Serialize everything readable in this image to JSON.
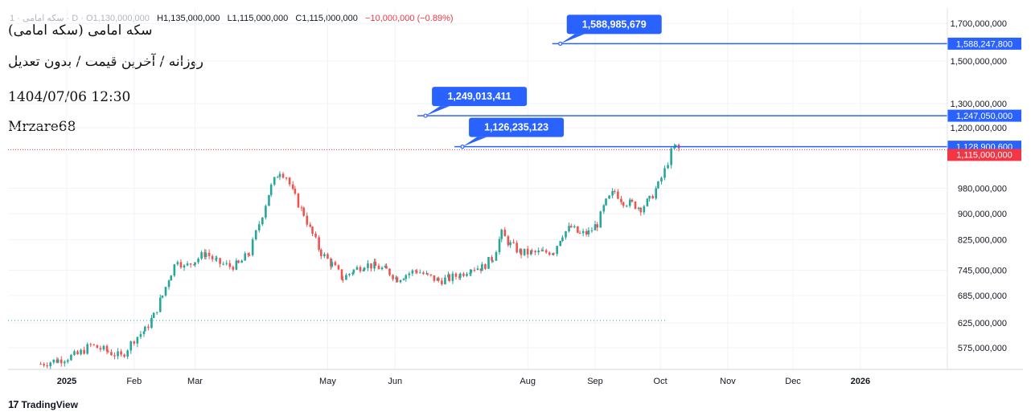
{
  "header": {
    "symbol_line": "1 · سکه امامی · D · O1,130,000,000",
    "high": "H1,135,000,000",
    "low": "L1,115,000,000",
    "close": "C1,115,000,000",
    "change": "−10,000,000 (−0.89%)"
  },
  "notes": {
    "title": "سکه امامی (سکه امامی)",
    "subtitle": "روزانه / آخرین قیمت / بدون تعدیل",
    "datetime": "1404/07/06 12:30",
    "author": "Mrzare68"
  },
  "branding": {
    "name": "TradingView",
    "logo_icon": "tradingview-logo-icon"
  },
  "colors": {
    "up": "#26a69a",
    "down": "#ef5350",
    "level": "#2962ff",
    "last_price": "#f23645",
    "grid": "#f0f3fa",
    "axis_text": "#131722"
  },
  "chart_data": {
    "type": "candlestick",
    "x_axis": {
      "tick_labels": [
        "2025",
        "Feb",
        "Mar",
        "May",
        "Jun",
        "Aug",
        "Sep",
        "Oct",
        "Nov",
        "Dec",
        "2026"
      ],
      "tick_dates": [
        "2025-01-01",
        "2025-02-01",
        "2025-03-01",
        "2025-05-01",
        "2025-06-01",
        "2025-08-01",
        "2025-09-01",
        "2025-10-01",
        "2025-11-01",
        "2025-12-01",
        "2026-01-01"
      ],
      "range": [
        "2024-12-05",
        "2026-02-10"
      ]
    },
    "y_axis": {
      "scale": "log",
      "tick_labels": [
        "1,700,000,000",
        "1,500,000,000",
        "1,300,000,000",
        "1,200,000,000",
        "980,000,000",
        "900,000,000",
        "825,000,000",
        "745,000,000",
        "685,000,000",
        "625,000,000",
        "575,000,000"
      ],
      "tick_values": [
        1700000000,
        1500000000,
        1300000000,
        1200000000,
        980000000,
        900000000,
        825000000,
        745000000,
        685000000,
        625000000,
        575000000
      ],
      "range": [
        535000000,
        1790000000
      ]
    },
    "grid": true,
    "series": [
      {
        "points": [
          [
            "2024-12-20",
            545000000
          ],
          [
            "2024-12-28",
            552000000
          ],
          [
            "2025-01-06",
            562000000
          ],
          [
            "2025-01-12",
            580000000
          ],
          [
            "2025-01-20",
            568000000
          ],
          [
            "2025-01-26",
            558000000
          ],
          [
            "2025-02-01",
            592000000
          ],
          [
            "2025-02-06",
            610000000
          ],
          [
            "2025-02-10",
            640000000
          ],
          [
            "2025-02-14",
            685000000
          ],
          [
            "2025-02-18",
            740000000
          ],
          [
            "2025-02-21",
            775000000
          ],
          [
            "2025-02-24",
            752000000
          ],
          [
            "2025-03-01",
            770000000
          ],
          [
            "2025-03-06",
            790000000
          ],
          [
            "2025-03-11",
            765000000
          ],
          [
            "2025-03-17",
            755000000
          ],
          [
            "2025-03-21",
            760000000
          ],
          [
            "2025-03-26",
            790000000
          ],
          [
            "2025-04-01",
            900000000
          ],
          [
            "2025-04-05",
            985000000
          ],
          [
            "2025-04-09",
            1040000000
          ],
          [
            "2025-04-12",
            1020000000
          ],
          [
            "2025-04-16",
            950000000
          ],
          [
            "2025-04-20",
            900000000
          ],
          [
            "2025-04-24",
            840000000
          ],
          [
            "2025-04-28",
            790000000
          ],
          [
            "2025-05-03",
            760000000
          ],
          [
            "2025-05-08",
            725000000
          ],
          [
            "2025-05-13",
            745000000
          ],
          [
            "2025-05-18",
            760000000
          ],
          [
            "2025-05-23",
            755000000
          ],
          [
            "2025-05-28",
            745000000
          ],
          [
            "2025-06-02",
            725000000
          ],
          [
            "2025-06-06",
            735000000
          ],
          [
            "2025-06-11",
            745000000
          ],
          [
            "2025-06-16",
            730000000
          ],
          [
            "2025-06-21",
            720000000
          ],
          [
            "2025-06-26",
            725000000
          ],
          [
            "2025-07-01",
            735000000
          ],
          [
            "2025-07-06",
            752000000
          ],
          [
            "2025-07-11",
            752000000
          ],
          [
            "2025-07-16",
            778000000
          ],
          [
            "2025-07-20",
            842000000
          ],
          [
            "2025-07-24",
            812000000
          ],
          [
            "2025-07-29",
            790000000
          ],
          [
            "2025-08-03",
            790000000
          ],
          [
            "2025-08-08",
            790000000
          ],
          [
            "2025-08-13",
            795000000
          ],
          [
            "2025-08-17",
            842000000
          ],
          [
            "2025-08-21",
            860000000
          ],
          [
            "2025-08-25",
            840000000
          ],
          [
            "2025-08-29",
            845000000
          ],
          [
            "2025-09-02",
            870000000
          ],
          [
            "2025-09-06",
            935000000
          ],
          [
            "2025-09-10",
            970000000
          ],
          [
            "2025-09-14",
            938000000
          ],
          [
            "2025-09-18",
            930000000
          ],
          [
            "2025-09-22",
            918000000
          ],
          [
            "2025-09-26",
            942000000
          ],
          [
            "2025-09-30",
            990000000
          ],
          [
            "2025-10-03",
            1040000000
          ],
          [
            "2025-10-06",
            1105000000
          ],
          [
            "2025-10-08",
            1125000000
          ],
          [
            "2025-10-10",
            1115000000
          ]
        ]
      }
    ],
    "levels": [
      {
        "label": "1,588,985,679",
        "value": 1588985679,
        "start": "2025-08-16",
        "axis_label": "1,588,247,800"
      },
      {
        "label": "1,249,013,411",
        "value": 1249013411,
        "start": "2025-06-15",
        "axis_label": "1,247,050,000"
      },
      {
        "label": "1,126,235,123",
        "value": 1126235123,
        "start": "2025-07-02",
        "axis_label": "1,128,900,600"
      }
    ],
    "last_price": {
      "value": 1115000000,
      "axis_label": "1,115,000,000"
    },
    "dotted_low_level": 630000000
  }
}
